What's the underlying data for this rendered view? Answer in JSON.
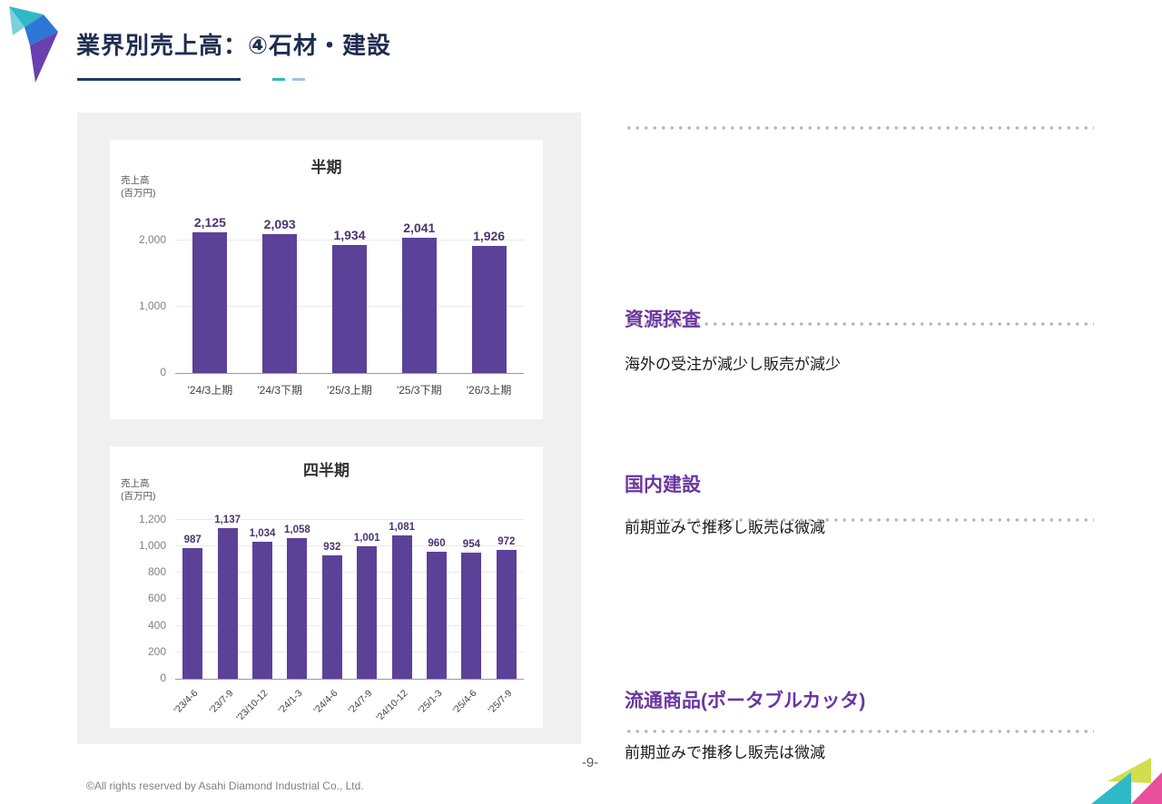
{
  "slide": {
    "title": "業界別売上高：④石材・建設",
    "page_number": "-9-",
    "footer": "©All rights reserved by Asahi Diamond Industrial Co., Ltd."
  },
  "colors": {
    "bar": "#5C4199",
    "value_label": "#4a3473",
    "heading_purple": "#6a35a0",
    "title_navy": "#1f2d50"
  },
  "sections": [
    {
      "heading": "資源探査",
      "body": "海外の受注が減少し販売が減少"
    },
    {
      "heading": "国内建設",
      "body": "前期並みで推移し販売は微減"
    },
    {
      "heading": "流通商品(ポータブルカッタ)",
      "body": "前期並みで推移し販売は微減"
    }
  ],
  "chart_data": [
    {
      "type": "bar",
      "title": "半期",
      "ylabel": "売上高\n(百万円)",
      "categories": [
        "'24/3上期",
        "'24/3下期",
        "'25/3上期",
        "'25/3下期",
        "'26/3上期"
      ],
      "values": [
        2125,
        2093,
        1934,
        2041,
        1926
      ],
      "yticks": [
        0,
        1000,
        2000
      ],
      "ylim": [
        0,
        2400
      ],
      "bar_color": "#5C4199",
      "legend": "none",
      "grid": "horizontal"
    },
    {
      "type": "bar",
      "title": "四半期",
      "ylabel": "売上高\n(百万円)",
      "categories": [
        "'23/4-6",
        "'23/7-9",
        "'23/10-12",
        "'24/1-3",
        "'24/4-6",
        "'24/7-9",
        "'24/10-12",
        "'25/1-3",
        "'25/4-6",
        "'25/7-9"
      ],
      "values": [
        987,
        1137,
        1034,
        1058,
        932,
        1001,
        1081,
        960,
        954,
        972
      ],
      "yticks": [
        0,
        200,
        400,
        600,
        800,
        1000,
        1200
      ],
      "ylim": [
        0,
        1300
      ],
      "bar_color": "#5C4199",
      "legend": "none",
      "grid": "horizontal"
    }
  ]
}
